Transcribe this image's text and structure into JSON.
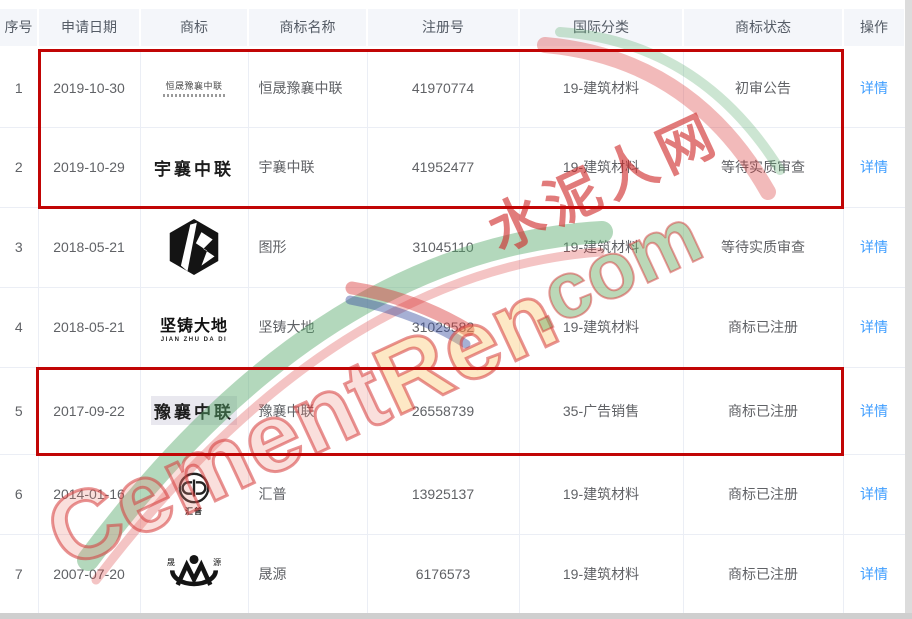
{
  "table": {
    "columns": [
      {
        "key": "index",
        "label": "序号"
      },
      {
        "key": "date",
        "label": "申请日期"
      },
      {
        "key": "mark",
        "label": "商标"
      },
      {
        "key": "name",
        "label": "商标名称"
      },
      {
        "key": "reg_no",
        "label": "注册号"
      },
      {
        "key": "intl_class",
        "label": "国际分类"
      },
      {
        "key": "status",
        "label": "商标状态"
      },
      {
        "key": "action",
        "label": "操作"
      }
    ],
    "rows": [
      {
        "index": "1",
        "date": "2019-10-30",
        "mark_type": "tiny-text",
        "mark_main": "恒晟豫襄中联",
        "name": "恒晟豫襄中联",
        "reg_no": "41970774",
        "intl_class": "19-建筑材料",
        "status": "初审公告",
        "action": "详情"
      },
      {
        "index": "2",
        "date": "2019-10-29",
        "mark_type": "calligraphy",
        "mark_main": "宇襄中联",
        "name": "宇襄中联",
        "reg_no": "41952477",
        "intl_class": "19-建筑材料",
        "status": "等待实质审查",
        "action": "详情"
      },
      {
        "index": "3",
        "date": "2018-05-21",
        "mark_type": "hex-logo",
        "name": "图形",
        "reg_no": "31045110",
        "intl_class": "19-建筑材料",
        "status": "等待实质审查",
        "action": "详情"
      },
      {
        "index": "4",
        "date": "2018-05-21",
        "mark_type": "bold-latin",
        "mark_main": "坚铸大地",
        "mark_sub": "JIAN ZHU DA DI",
        "name": "坚铸大地",
        "reg_no": "31029582",
        "intl_class": "19-建筑材料",
        "status": "商标已注册",
        "action": "详情"
      },
      {
        "index": "5",
        "date": "2017-09-22",
        "mark_type": "calligraphy-hl",
        "mark_main": "豫襄中联",
        "name": "豫襄中联",
        "reg_no": "26558739",
        "intl_class": "35-广告销售",
        "status": "商标已注册",
        "action": "详情"
      },
      {
        "index": "6",
        "date": "2014-01-16",
        "mark_type": "circle-logo",
        "mark_sub": "汇普",
        "name": "汇普",
        "reg_no": "13925137",
        "intl_class": "19-建筑材料",
        "status": "商标已注册",
        "action": "详情"
      },
      {
        "index": "7",
        "date": "2007-07-20",
        "mark_type": "oval-logo",
        "mark_left": "晟",
        "mark_right": "源",
        "name": "晟源",
        "reg_no": "6176573",
        "intl_class": "19-建筑材料",
        "status": "商标已注册",
        "action": "详情"
      }
    ]
  },
  "watermark": {
    "cn": "水泥人网",
    "en_main": "Cement",
    "en_accent": "Ren",
    "dotcom": ".com"
  },
  "colors": {
    "link": "#409eff",
    "highlight_border": "#c10505",
    "header_bg": "#f4f6fa",
    "table_border": "#ebeef5",
    "watermark_red": "#d53a3a",
    "watermark_green": "#57a86b"
  }
}
